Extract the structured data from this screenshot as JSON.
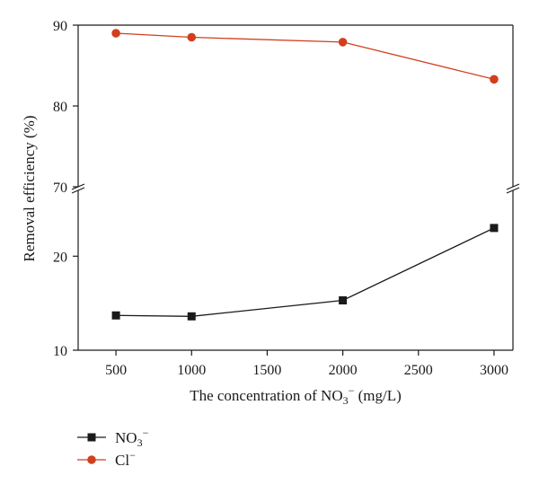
{
  "chart_data": {
    "type": "line",
    "xlabel_main": "The concentration of NO",
    "xlabel_sub": "3",
    "xlabel_sup": "−",
    "xlabel_tail": " (mg/L)",
    "ylabel": "Removal efficiency (%)",
    "x_ticks": [
      500,
      1000,
      1500,
      2000,
      2500,
      3000
    ],
    "xlim": [
      250,
      3125
    ],
    "axis_break": true,
    "upper_panel": {
      "ylim": [
        70,
        90
      ],
      "y_ticks": [
        70,
        80,
        90
      ]
    },
    "lower_panel": {
      "ylim": [
        10,
        27
      ],
      "y_ticks": [
        10,
        20
      ]
    },
    "grid": false,
    "legend_position": "below-left",
    "series": [
      {
        "key": "no3",
        "name_main": "NO",
        "name_sub": "3",
        "name_sup": "−",
        "panel": "lower",
        "marker": "square",
        "color": "#1a1a1a",
        "x": [
          500,
          1000,
          2000,
          3000
        ],
        "y": [
          13.7,
          13.6,
          15.3,
          23.0
        ]
      },
      {
        "key": "cl",
        "name_main": "Cl",
        "name_sub": "",
        "name_sup": "−",
        "panel": "upper",
        "marker": "circle",
        "color": "#d13f1e",
        "x": [
          500,
          1000,
          2000,
          3000
        ],
        "y": [
          89.0,
          88.5,
          87.9,
          83.3
        ]
      }
    ]
  }
}
